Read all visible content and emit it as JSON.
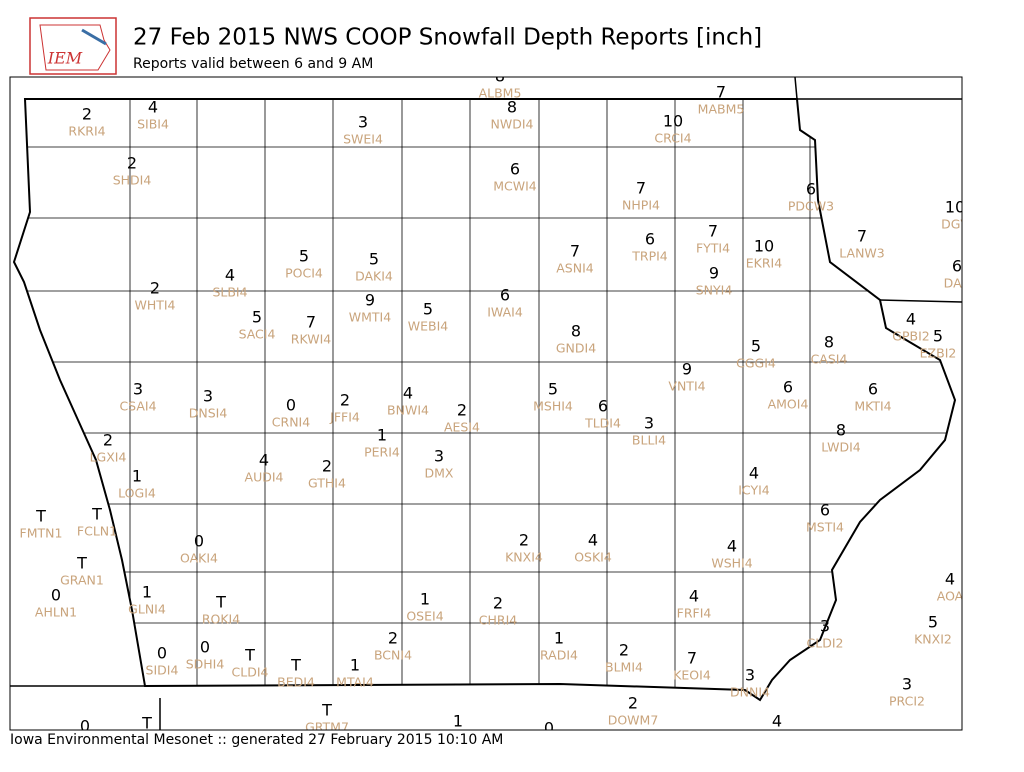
{
  "header": {
    "logo": "IEM",
    "title": "27 Feb 2015 NWS COOP Snowfall Depth Reports [inch]",
    "subtitle": "Reports valid between 6 and 9 AM"
  },
  "footer": "Iowa Environmental Mesonet :: generated 27 February 2015 10:10 AM",
  "stations": [
    {
      "value": 8,
      "id": "ALBM5"
    },
    {
      "value": 7,
      "id": "MABM5"
    },
    {
      "value": 2,
      "id": "RKRI4"
    },
    {
      "value": 4,
      "id": "SIBI4"
    },
    {
      "value": 3,
      "id": "SWEI4"
    },
    {
      "value": 8,
      "id": "NWDI4"
    },
    {
      "value": 10,
      "id": "CRCI4"
    },
    {
      "value": 2,
      "id": "SHDI4"
    },
    {
      "value": 6,
      "id": "MCWI4"
    },
    {
      "value": 7,
      "id": "NHPI4"
    },
    {
      "value": 6,
      "id": "PDCW3"
    },
    {
      "value": 10,
      "id": "DGV"
    },
    {
      "value": 7,
      "id": "LANW3"
    },
    {
      "value": 7,
      "id": "FYTI4"
    },
    {
      "value": 10,
      "id": "EKRI4"
    },
    {
      "value": 6,
      "id": "TRPI4"
    },
    {
      "value": 7,
      "id": "ASNI4"
    },
    {
      "value": 5,
      "id": "POCI4"
    },
    {
      "value": 5,
      "id": "DAKI4"
    },
    {
      "value": 4,
      "id": "SLBI4"
    },
    {
      "value": 2,
      "id": "WHTI4"
    },
    {
      "value": 9,
      "id": "SNYI4"
    },
    {
      "value": 6,
      "id": "DAR"
    },
    {
      "value": 6,
      "id": "IWAI4"
    },
    {
      "value": 9,
      "id": "WMTI4"
    },
    {
      "value": 5,
      "id": "WEBI4"
    },
    {
      "value": 5,
      "id": "SACI4"
    },
    {
      "value": 7,
      "id": "RKWI4"
    },
    {
      "value": 4,
      "id": "GPBI2"
    },
    {
      "value": 5,
      "id": "EZBI2"
    },
    {
      "value": 8,
      "id": "GNDI4"
    },
    {
      "value": 5,
      "id": "CGGI4"
    },
    {
      "value": 8,
      "id": "CASI4"
    },
    {
      "value": 9,
      "id": "VNTI4"
    },
    {
      "value": 6,
      "id": "AMOI4"
    },
    {
      "value": 6,
      "id": "MKTI4"
    },
    {
      "value": 3,
      "id": "CSAI4"
    },
    {
      "value": 3,
      "id": "DNSI4"
    },
    {
      "value": 0,
      "id": "CRNI4"
    },
    {
      "value": 2,
      "id": "JFFI4"
    },
    {
      "value": 4,
      "id": "BNWI4"
    },
    {
      "value": 2,
      "id": "AESI4"
    },
    {
      "value": 5,
      "id": "MSHI4"
    },
    {
      "value": 6,
      "id": "TLDI4"
    },
    {
      "value": 3,
      "id": "BLLI4"
    },
    {
      "value": 8,
      "id": "LWDI4"
    },
    {
      "value": 2,
      "id": "LGXI4"
    },
    {
      "value": 1,
      "id": "PERI4"
    },
    {
      "value": 3,
      "id": "DMX"
    },
    {
      "value": 4,
      "id": "AUDI4"
    },
    {
      "value": 2,
      "id": "GTHI4"
    },
    {
      "value": 1,
      "id": "LOGI4"
    },
    {
      "value": 4,
      "id": "ICYI4"
    },
    {
      "value": 6,
      "id": "MSTI4"
    },
    {
      "value": "T",
      "id": "FMTN1"
    },
    {
      "value": "T",
      "id": "FCLN1"
    },
    {
      "value": 0,
      "id": "OAKI4"
    },
    {
      "value": 2,
      "id": "KNXI4"
    },
    {
      "value": 4,
      "id": "OSKI4"
    },
    {
      "value": 4,
      "id": "WSHI4"
    },
    {
      "value": "T",
      "id": "GRAN1"
    },
    {
      "value": 0,
      "id": "AHLN1"
    },
    {
      "value": 1,
      "id": "GLNI4"
    },
    {
      "value": "T",
      "id": "ROKI4"
    },
    {
      "value": 1,
      "id": "OSEI4"
    },
    {
      "value": 2,
      "id": "CHRI4"
    },
    {
      "value": 4,
      "id": "FRFI4"
    },
    {
      "value": 4,
      "id": "AOA"
    },
    {
      "value": 5,
      "id": "KNXI2"
    },
    {
      "value": 3,
      "id": "CLDI2"
    },
    {
      "value": 0,
      "id": "SIDI4"
    },
    {
      "value": 0,
      "id": "SDHI4"
    },
    {
      "value": "T",
      "id": "CLDI4"
    },
    {
      "value": "T",
      "id": "BEDI4"
    },
    {
      "value": 1,
      "id": "MTAI4"
    },
    {
      "value": 2,
      "id": "BCNI4"
    },
    {
      "value": 1,
      "id": "RADI4"
    },
    {
      "value": 2,
      "id": "BLMI4"
    },
    {
      "value": 7,
      "id": "KEOI4"
    },
    {
      "value": 3,
      "id": "DNNI4"
    },
    {
      "value": 3,
      "id": "PRCI2"
    },
    {
      "value": 2,
      "id": "DOWM7"
    },
    {
      "value": "T",
      "id": "GRTM7"
    },
    {
      "value": 1
    },
    {
      "value": 0
    },
    {
      "value": "T"
    },
    {
      "value": 0
    },
    {
      "value": 4
    }
  ]
}
